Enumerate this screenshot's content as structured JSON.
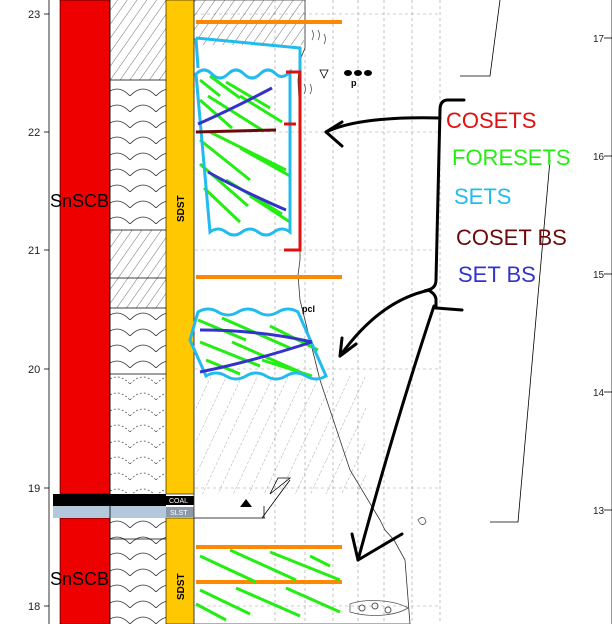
{
  "depth_axis": {
    "ticks": [
      "23",
      "22",
      "21",
      "20",
      "19",
      "18"
    ]
  },
  "right_axis": {
    "ticks": [
      "17",
      "16",
      "15",
      "14",
      "13"
    ]
  },
  "units": {
    "upper": "SnSCB",
    "lower": "SnSCB"
  },
  "lithology": {
    "upper": "SDST",
    "lower": "SDST",
    "coal": "COAL",
    "slst": "SLST"
  },
  "annotations": {
    "pcl": "pcl",
    "p": "p"
  },
  "legend": [
    {
      "label": "COSETS",
      "color": "#e01010"
    },
    {
      "label": "FORESETS",
      "color": "#22ee11"
    },
    {
      "label": "SETS",
      "color": "#22bbee"
    },
    {
      "label": "COSET BS",
      "color": "#6b0a0a"
    },
    {
      "label": "SET BS",
      "color": "#3333cc"
    }
  ],
  "colors": {
    "unit_bar": "#ee0000",
    "lith_bar": "#ffc800",
    "orange_line": "#ff8800",
    "coal": "#000000",
    "slst": "#b4c8dc"
  }
}
